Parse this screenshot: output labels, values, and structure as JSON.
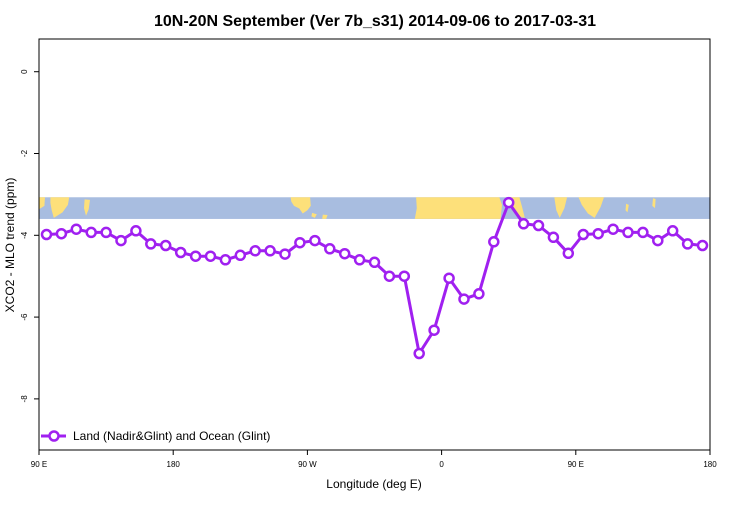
{
  "chart_data": {
    "type": "line",
    "title": "10N-20N September (Ver 7b_s31)   2014-09-06 to 2017-03-31",
    "xlabel": "Longitude (deg E)",
    "ylabel": "XCO2 - MLO trend (ppm)",
    "x_ticks": [
      {
        "value": 90,
        "label": "90 E"
      },
      {
        "value": 180,
        "label": "180"
      },
      {
        "value": 270,
        "label": "90 W"
      },
      {
        "value": 360,
        "label": "0"
      },
      {
        "value": 450,
        "label": "90 E"
      },
      {
        "value": 540,
        "label": "180"
      }
    ],
    "y_ticks": [
      {
        "value": 0,
        "label": "0"
      },
      {
        "value": -2,
        "label": "-2"
      },
      {
        "value": -4,
        "label": "-4"
      },
      {
        "value": -6,
        "label": "-6"
      },
      {
        "value": -8,
        "label": "-8"
      }
    ],
    "xlim": [
      90,
      540
    ],
    "ylim": [
      -9.25,
      0.8
    ],
    "map_band": {
      "ymin": -3.6,
      "ymax": -3.07,
      "ocean_color": "#a8bde0",
      "land_color": "#fde07a"
    },
    "series": [
      {
        "name": "Land (Nadir&Glint) and Ocean (Glint)",
        "color": "#a020f0",
        "x": [
          95,
          105,
          115,
          125,
          135,
          145,
          155,
          165,
          175,
          185,
          195,
          205,
          215,
          225,
          235,
          245,
          255,
          265,
          275,
          285,
          295,
          305,
          315,
          325,
          335,
          345,
          355,
          365,
          375,
          385,
          395,
          405,
          415,
          425,
          435,
          445,
          455,
          465,
          475,
          485,
          495,
          505,
          515,
          525,
          535
        ],
        "y": [
          -3.98,
          -3.96,
          -3.85,
          -3.93,
          -3.93,
          -4.13,
          -3.89,
          -4.21,
          -4.25,
          -4.42,
          -4.51,
          -4.51,
          -4.6,
          -4.49,
          -4.38,
          -4.38,
          -4.46,
          -4.18,
          -4.13,
          -4.33,
          -4.45,
          -4.6,
          -4.66,
          -5.0,
          -5.0,
          -6.89,
          -6.32,
          -5.05,
          -5.56,
          -5.43,
          -4.16,
          -3.2,
          -3.72,
          -3.76,
          -4.05,
          -4.44,
          -3.98,
          -3.96,
          -3.85,
          -3.93,
          -3.93,
          -4.13,
          -3.89,
          -4.21,
          -4.25
        ]
      }
    ],
    "legend": {
      "position": "bottom-left",
      "label": "Land (Nadir&Glint) and Ocean (Glint)"
    }
  }
}
